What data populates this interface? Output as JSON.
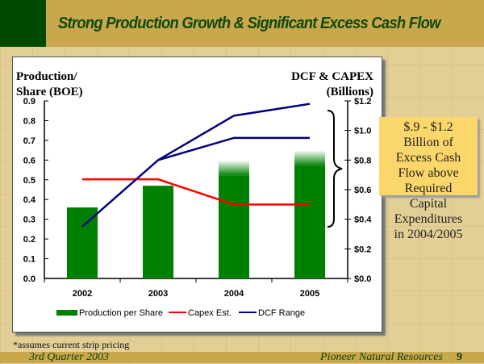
{
  "header": {
    "title": "Strong Production Growth & Significant Excess Cash Flow"
  },
  "colors": {
    "bar": "#008000",
    "capex": "#ff0000",
    "dcf": "#000080"
  },
  "chart_data": {
    "type": "bar",
    "categories": [
      "2002",
      "2003",
      "2004",
      "2005"
    ],
    "left_axis": {
      "label_line1": "Production/",
      "label_line2": "Share (BOE)",
      "ylim": [
        0,
        0.9
      ],
      "ticks": [
        "0.0",
        "0.1",
        "0.2",
        "0.3",
        "0.4",
        "0.5",
        "0.6",
        "0.7",
        "0.8",
        "0.9"
      ]
    },
    "right_axis": {
      "label_line1": "DCF & CAPEX",
      "label_line2": "(Billions)",
      "ylim": [
        0,
        1.2
      ],
      "ticks": [
        "$0.0",
        "$0.2",
        "$0.4",
        "$0.6",
        "$0.8",
        "$1.0",
        "$1.2"
      ]
    },
    "series": [
      {
        "name": "Production per Share",
        "type": "bar",
        "axis": "left",
        "values": [
          0.36,
          0.47,
          0.6,
          0.65
        ],
        "faded_top": [
          false,
          false,
          true,
          true
        ]
      },
      {
        "name": "Capex Est.",
        "type": "line",
        "axis": "right",
        "values": [
          0.67,
          0.67,
          0.5,
          0.5
        ]
      },
      {
        "name": "DCF Range",
        "type": "line",
        "axis": "right",
        "values": [
          0.35,
          0.8,
          1.1,
          1.18
        ]
      },
      {
        "name": "DCF Range (low)",
        "type": "line",
        "axis": "right",
        "values": [
          null,
          0.8,
          0.95,
          0.95
        ]
      }
    ],
    "legend": [
      "Production per Share",
      "Capex Est.",
      "DCF Range"
    ],
    "legend_position": "bottom"
  },
  "callout": {
    "lines": [
      "$.9 - $1.2",
      "Billion of",
      "Excess Cash",
      "Flow above",
      "Required",
      "Capital",
      "Expenditures",
      "in 2004/2005"
    ]
  },
  "footnote": "*assumes current strip pricing",
  "footer": {
    "quarter": "3rd Quarter 2003",
    "company": "Pioneer Natural Resources",
    "page": "9"
  }
}
